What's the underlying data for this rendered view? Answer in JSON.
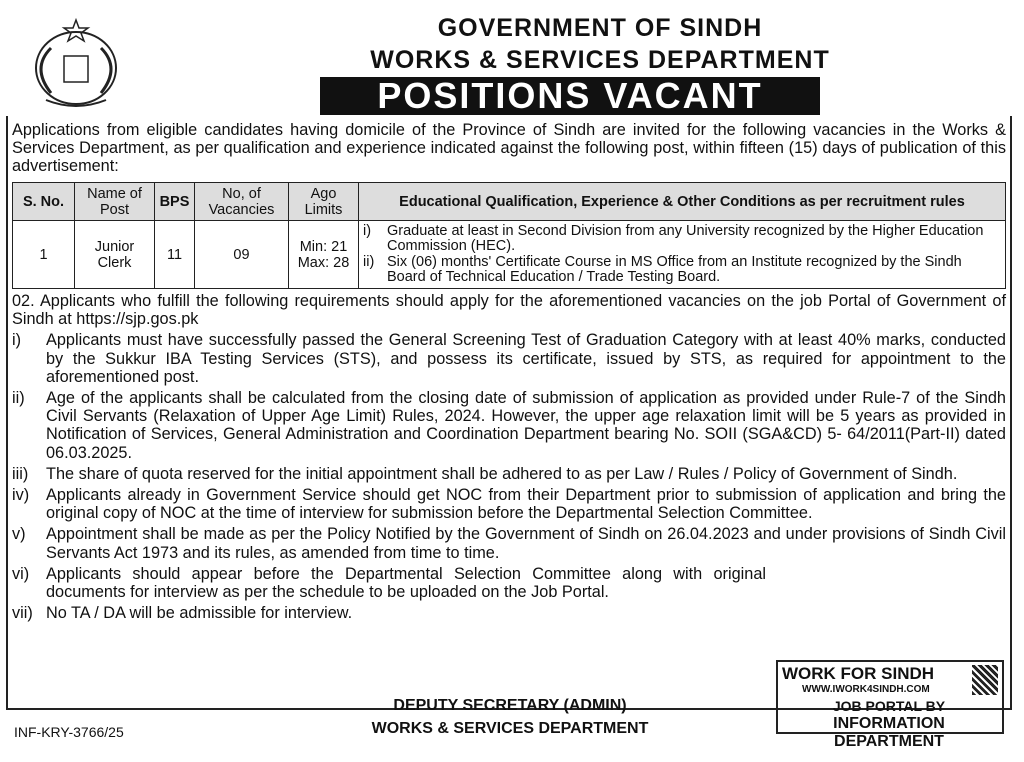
{
  "header": {
    "line1": "GOVERNMENT OF SINDH",
    "line2": "WORKS & SERVICES DEPARTMENT",
    "banner": "POSITIONS VACANT"
  },
  "intro": "Applications from eligible candidates having domicile of the Province of Sindh are invited for the following vacancies in the Works & Services Department, as per qualification and experience indicated against the following post, within fifteen (15) days of publication of this advertisement:",
  "table": {
    "headers": [
      "S. No.",
      "Name of Post",
      "BPS",
      "No, of Vacancies",
      "Ago Limits",
      "Educational Qualification, Experience & Other Conditions as per recruitment rules"
    ],
    "row": {
      "sno": "1",
      "post": "Junior Clerk",
      "bps": "11",
      "vacancies": "09",
      "age_min": "Min: 21",
      "age_max": "Max: 28",
      "quals": [
        {
          "n": "i)",
          "t": "Graduate at least in Second Division from any University recognized by the Higher Education Commission (HEC)."
        },
        {
          "n": "ii)",
          "t": "Six (06) months' Certificate Course in MS Office from an Institute recognized by the Sindh Board of Technical Education / Trade Testing Board."
        }
      ]
    }
  },
  "para02": "02. Applicants who fulfill the following requirements should apply for the aforementioned vacancies on the job Portal of Government of Sindh at https://sjp.gos.pk",
  "items": [
    {
      "n": "i)",
      "t": "Applicants must have successfully passed the General Screening Test of Graduation Category with at least 40% marks, conducted by the Sukkur IBA Testing Services (STS), and possess its certificate, issued by STS, as required for appointment to the aforementioned post."
    },
    {
      "n": "ii)",
      "t": "Age of the applicants shall be calculated from the closing date of submission of application as provided under Rule-7 of the Sindh Civil Servants (Relaxation of Upper Age Limit) Rules, 2024. However, the upper age relaxation limit will be 5 years as provided in Notification of Services, General Administration and Coordination Department bearing No. SOII (SGA&CD) 5- 64/2011(Part-II) dated 06.03.2025."
    },
    {
      "n": "iii)",
      "t": "The share of quota reserved for the initial appointment shall be adhered to as per Law / Rules / Policy of Government of Sindh."
    },
    {
      "n": "iv)",
      "t": "Applicants already in Government Service should get NOC from their Department prior to submission of application and bring the original copy of NOC at the time of interview for submission before the Departmental Selection Committee."
    },
    {
      "n": "v)",
      "t": "Appointment shall be made as per the Policy Notified by the Government of Sindh on 26.04.2023 and under provisions of Sindh Civil Servants Act 1973 and its rules, as amended from time to time."
    },
    {
      "n": "vi)",
      "t": "Applicants should appear before the Departmental Selection Committee along with original documents for interview as per the schedule to be uploaded on the Job Portal."
    },
    {
      "n": "vii)",
      "t": "No TA / DA will be admissible for interview."
    }
  ],
  "signature": {
    "title": "DEPUTY SECRETARY (ADMIN)",
    "dept": "WORKS & SERVICES DEPARTMENT"
  },
  "ref": "INF-KRY-3766/25",
  "iwork": {
    "title": "WORK FOR SINDH",
    "url": "WWW.IWORK4SINDH.COM",
    "line1": "JOB PORTAL BY",
    "line2": "INFORMATION DEPARTMENT"
  }
}
